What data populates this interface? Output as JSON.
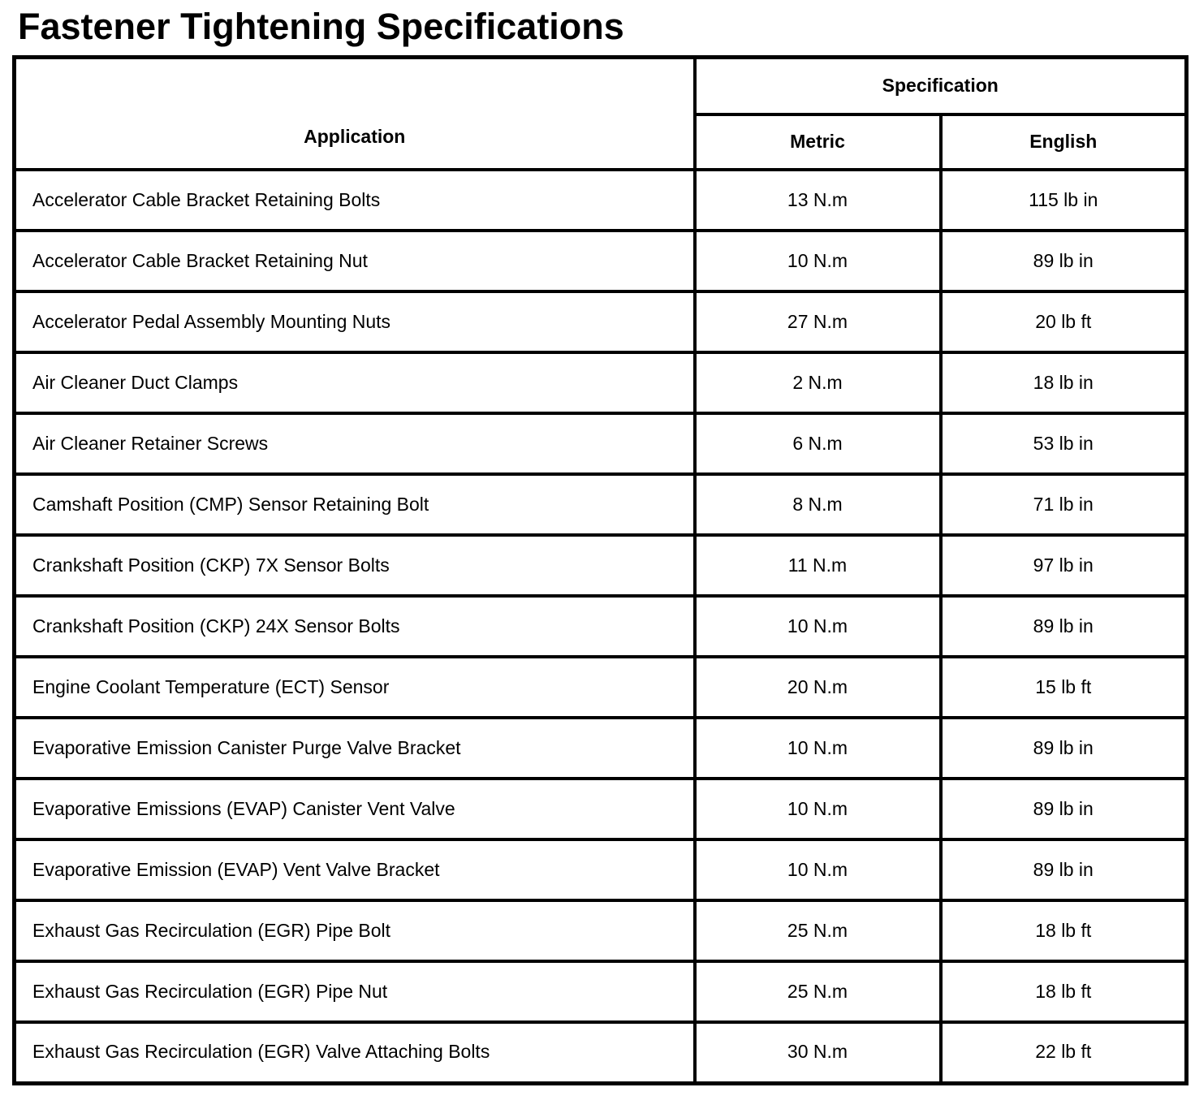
{
  "page_title": "Fastener Tightening Specifications",
  "table": {
    "header": {
      "application": "Application",
      "specification": "Specification",
      "metric": "Metric",
      "english": "English"
    },
    "rows": [
      {
        "application": "Accelerator Cable Bracket Retaining Bolts",
        "metric": "13 N.m",
        "english": "115 lb in"
      },
      {
        "application": "Accelerator Cable Bracket Retaining Nut",
        "metric": "10 N.m",
        "english": "89 lb in"
      },
      {
        "application": "Accelerator Pedal Assembly Mounting Nuts",
        "metric": "27 N.m",
        "english": "20 lb ft"
      },
      {
        "application": "Air Cleaner Duct Clamps",
        "metric": "2 N.m",
        "english": "18 lb in"
      },
      {
        "application": "Air Cleaner Retainer Screws",
        "metric": "6 N.m",
        "english": "53 lb in"
      },
      {
        "application": "Camshaft Position (CMP) Sensor Retaining Bolt",
        "metric": "8 N.m",
        "english": "71 lb in"
      },
      {
        "application": "Crankshaft Position (CKP) 7X Sensor Bolts",
        "metric": "11 N.m",
        "english": "97 lb in"
      },
      {
        "application": "Crankshaft Position (CKP) 24X Sensor Bolts",
        "metric": "10 N.m",
        "english": "89 lb in"
      },
      {
        "application": "Engine Coolant Temperature (ECT) Sensor",
        "metric": "20 N.m",
        "english": "15 lb ft"
      },
      {
        "application": "Evaporative Emission Canister Purge Valve Bracket",
        "metric": "10 N.m",
        "english": "89 lb in"
      },
      {
        "application": "Evaporative Emissions (EVAP) Canister Vent Valve",
        "metric": "10 N.m",
        "english": "89 lb in"
      },
      {
        "application": "Evaporative Emission (EVAP) Vent Valve Bracket",
        "metric": "10 N.m",
        "english": "89 lb in"
      },
      {
        "application": "Exhaust Gas Recirculation (EGR) Pipe Bolt",
        "metric": "25 N.m",
        "english": "18 lb ft"
      },
      {
        "application": "Exhaust Gas Recirculation (EGR) Pipe Nut",
        "metric": "25 N.m",
        "english": "18 lb ft"
      },
      {
        "application": "Exhaust Gas Recirculation (EGR) Valve Attaching Bolts",
        "metric": "30 N.m",
        "english": "22 lb ft"
      }
    ]
  }
}
